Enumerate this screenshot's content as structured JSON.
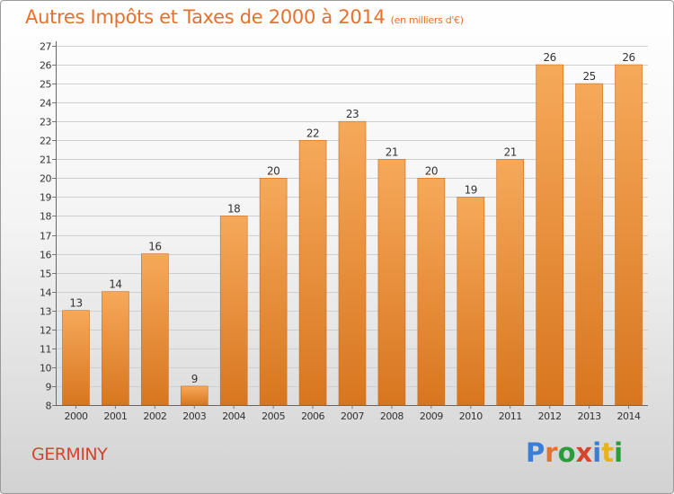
{
  "title": "Autres Impôts et Taxes de 2000 à 2014",
  "title_unit": "(en milliers d'€)",
  "city": "GERMINY",
  "brand": {
    "text": "Proxiti",
    "letter_colors": [
      "#3a7fd5",
      "#e8702a",
      "#2a9d3a",
      "#d9432b",
      "#3a7fd5",
      "#e8b21a",
      "#2a9d3a"
    ]
  },
  "colors": {
    "bar_light": "#f6a95a",
    "bar_dark": "#d8761f",
    "bar_edge": "#c96a18",
    "title": "#e8702a",
    "city": "#d9432b"
  },
  "chart_data": {
    "type": "bar",
    "categories": [
      "2000",
      "2001",
      "2002",
      "2003",
      "2004",
      "2005",
      "2006",
      "2007",
      "2008",
      "2009",
      "2010",
      "2011",
      "2012",
      "2013",
      "2014"
    ],
    "values": [
      13,
      14,
      16,
      9,
      18,
      20,
      22,
      23,
      21,
      20,
      19,
      21,
      26,
      25,
      26
    ],
    "ylim": [
      8,
      27
    ],
    "yticks": [
      8,
      9,
      10,
      11,
      12,
      13,
      14,
      15,
      16,
      17,
      18,
      19,
      20,
      21,
      22,
      23,
      24,
      25,
      26,
      27
    ],
    "grid": true,
    "data_labels": true
  }
}
